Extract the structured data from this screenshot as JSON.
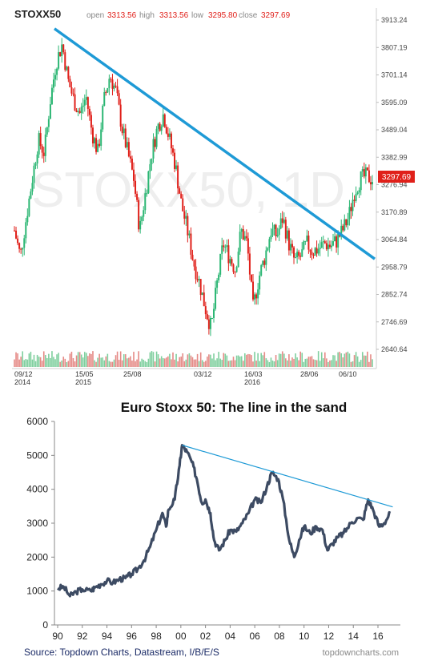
{
  "chart_data": [
    {
      "type": "candlestick",
      "symbol": "STOXX50",
      "watermark": "STOXX50, 1D",
      "ohlc": {
        "open_label": "open",
        "open": "3313.56",
        "high_label": "high",
        "high": "3313.56",
        "low_label": "low",
        "low": "3295.80",
        "close_label": "close",
        "close": "3297.69"
      },
      "last_price": "3297.69",
      "y_ticks": [
        "3913.24",
        "3807.19",
        "3701.14",
        "3595.09",
        "3489.04",
        "3382.99",
        "3276.94",
        "3170.89",
        "3064.84",
        "2958.79",
        "2852.74",
        "2746.69",
        "2640.64"
      ],
      "ylim": [
        2640.64,
        3913.24
      ],
      "x_ticks": [
        {
          "label": "09/12",
          "sub": "2014"
        },
        {
          "label": "15/05",
          "sub": "2015"
        },
        {
          "label": "25/08",
          "sub": ""
        },
        {
          "label": "03/12",
          "sub": ""
        },
        {
          "label": "16/03",
          "sub": "2016"
        },
        {
          "label": "28/06",
          "sub": ""
        },
        {
          "label": "06/10",
          "sub": ""
        }
      ],
      "price_path": [
        3100,
        3000,
        3150,
        3300,
        3450,
        3400,
        3600,
        3750,
        3820,
        3680,
        3600,
        3550,
        3620,
        3480,
        3400,
        3600,
        3700,
        3640,
        3500,
        3400,
        3300,
        3100,
        3250,
        3400,
        3500,
        3550,
        3450,
        3350,
        3200,
        3100,
        2980,
        2900,
        2800,
        2720,
        2900,
        3050,
        3000,
        2950,
        3100,
        3050,
        2800,
        2920,
        3000,
        3100,
        3080,
        3150,
        3050,
        2980,
        3000,
        3050,
        3020,
        3030,
        3050,
        3040,
        3060,
        3100,
        3150,
        3250,
        3300,
        3310,
        3298
      ],
      "trendline": {
        "from": 3880,
        "to": 2990
      }
    },
    {
      "type": "line",
      "title": "Euro Stoxx 50: The line in the sand",
      "x_ticks": [
        "90",
        "92",
        "94",
        "96",
        "98",
        "00",
        "02",
        "04",
        "06",
        "08",
        "10",
        "12",
        "14",
        "16"
      ],
      "y_ticks": [
        "0",
        "1000",
        "2000",
        "3000",
        "4000",
        "5000",
        "6000"
      ],
      "ylim": [
        0,
        6000
      ],
      "xlim": [
        1990,
        2017.3
      ],
      "series": [
        {
          "values": [
            [
              1990,
              1080
            ],
            [
              1990.5,
              1120
            ],
            [
              1991,
              850
            ],
            [
              1991.5,
              980
            ],
            [
              1992,
              1050
            ],
            [
              1992.7,
              1000
            ],
            [
              1993,
              1100
            ],
            [
              1993.5,
              1200
            ],
            [
              1994,
              1300
            ],
            [
              1994.5,
              1250
            ],
            [
              1995,
              1350
            ],
            [
              1995.5,
              1380
            ],
            [
              1996,
              1500
            ],
            [
              1996.5,
              1650
            ],
            [
              1997,
              1900
            ],
            [
              1997.5,
              2300
            ],
            [
              1998,
              2800
            ],
            [
              1998.5,
              3300
            ],
            [
              1998.8,
              2900
            ],
            [
              1999,
              3400
            ],
            [
              1999.5,
              3700
            ],
            [
              1999.9,
              4700
            ],
            [
              2000.1,
              5300
            ],
            [
              2000.5,
              5100
            ],
            [
              2000.9,
              4800
            ],
            [
              2001.3,
              4300
            ],
            [
              2001.7,
              3600
            ],
            [
              2002,
              3700
            ],
            [
              2002.4,
              3300
            ],
            [
              2002.7,
              2500
            ],
            [
              2003.1,
              2200
            ],
            [
              2003.6,
              2500
            ],
            [
              2004,
              2800
            ],
            [
              2004.5,
              2750
            ],
            [
              2005,
              3000
            ],
            [
              2005.5,
              3300
            ],
            [
              2006,
              3700
            ],
            [
              2006.5,
              3600
            ],
            [
              2007,
              4100
            ],
            [
              2007.4,
              4500
            ],
            [
              2007.9,
              4300
            ],
            [
              2008.3,
              3700
            ],
            [
              2008.8,
              2500
            ],
            [
              2009.2,
              2000
            ],
            [
              2009.6,
              2500
            ],
            [
              2010,
              2900
            ],
            [
              2010.5,
              2700
            ],
            [
              2011,
              2900
            ],
            [
              2011.5,
              2800
            ],
            [
              2011.9,
              2200
            ],
            [
              2012.3,
              2400
            ],
            [
              2012.8,
              2600
            ],
            [
              2013.2,
              2700
            ],
            [
              2013.8,
              3000
            ],
            [
              2014.3,
              3150
            ],
            [
              2014.8,
              3100
            ],
            [
              2015.2,
              3700
            ],
            [
              2015.6,
              3400
            ],
            [
              2016.1,
              2900
            ],
            [
              2016.5,
              3000
            ],
            [
              2017,
              3300
            ]
          ]
        }
      ],
      "trendline": {
        "x0": 2000.1,
        "y0": 5300,
        "x1": 2017.2,
        "y1": 3480
      },
      "source": "Source: Topdown Charts, Datastream, I/B/E/S",
      "watermark": "topdowncharts.com"
    }
  ],
  "colors": {
    "up": "#2bb673",
    "down": "#e0201a",
    "trend": "#1e9ad6",
    "line": "#3d4b63",
    "volume_up": "#7fcf9e",
    "volume_down": "#e58a86"
  }
}
